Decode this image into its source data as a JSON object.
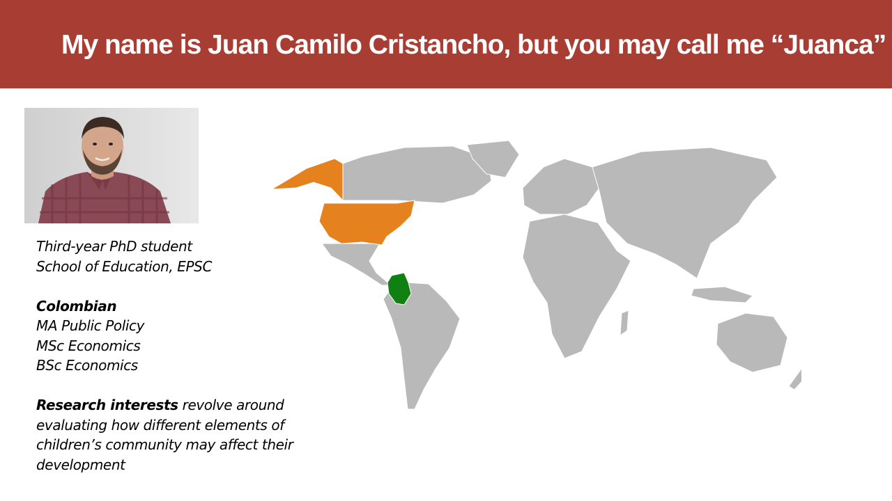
{
  "header": {
    "title": "My name is Juan Camilo Cristancho, but you may call me “Juanca”"
  },
  "photo": {
    "alt": "Portrait of Juan Camilo Cristancho"
  },
  "bio": {
    "role": "Third-year PhD student",
    "school": "School of Education, EPSC",
    "nationality": "Colombian",
    "degrees": [
      "MA Public Policy",
      "MSc Economics",
      "BSc Economics"
    ],
    "research_label": "Research interests",
    "research_text": " revolve around evaluating how different elements of children’s community may affect their development"
  },
  "map": {
    "highlighted": [
      {
        "country": "Colombia",
        "color": "#118012"
      },
      {
        "country": "United States",
        "color": "#e6821e"
      }
    ],
    "land_color": "#b9b9b9"
  }
}
